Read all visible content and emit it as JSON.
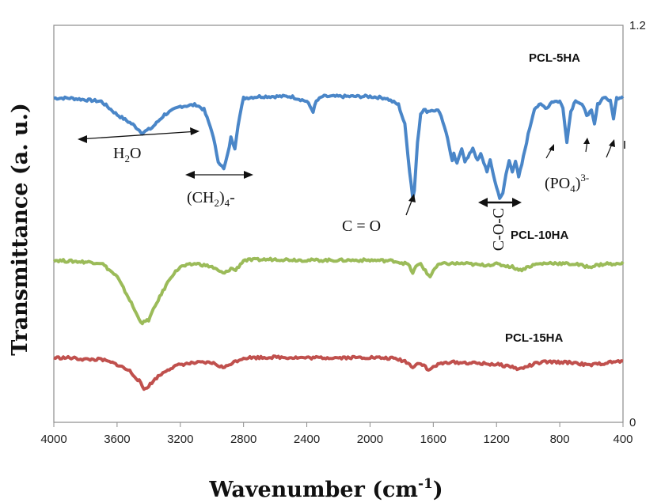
{
  "chart_data": {
    "type": "line",
    "xlabel": "Wavenumber (cm",
    "xlabel_sup": "-1",
    "xlabel_end": ")",
    "ylabel": "Transmittance (a. u.)",
    "xlim": [
      4000,
      400
    ],
    "x_reversed": true,
    "ylim": [
      0,
      1.2
    ],
    "x_ticks": [
      "4000",
      "3600",
      "3200",
      "2800",
      "2400",
      "2000",
      "1600",
      "1200",
      "800",
      "400"
    ],
    "y_ticks": [
      "1.2",
      "0"
    ],
    "grid": false,
    "series": [
      {
        "name": "PCL-5HA",
        "color": "#4a86c8",
        "points": [
          [
            4000,
            0.98
          ],
          [
            3900,
            0.98
          ],
          [
            3800,
            0.975
          ],
          [
            3700,
            0.97
          ],
          [
            3600,
            0.93
          ],
          [
            3500,
            0.9
          ],
          [
            3440,
            0.875
          ],
          [
            3380,
            0.89
          ],
          [
            3300,
            0.93
          ],
          [
            3200,
            0.955
          ],
          [
            3100,
            0.96
          ],
          [
            3050,
            0.945
          ],
          [
            3000,
            0.88
          ],
          [
            2960,
            0.79
          ],
          [
            2925,
            0.765
          ],
          [
            2900,
            0.81
          ],
          [
            2880,
            0.86
          ],
          [
            2855,
            0.83
          ],
          [
            2835,
            0.9
          ],
          [
            2800,
            0.98
          ],
          [
            2700,
            0.985
          ],
          [
            2500,
            0.985
          ],
          [
            2400,
            0.97
          ],
          [
            2360,
            0.94
          ],
          [
            2340,
            0.97
          ],
          [
            2300,
            0.985
          ],
          [
            2000,
            0.985
          ],
          [
            1900,
            0.98
          ],
          [
            1820,
            0.96
          ],
          [
            1780,
            0.9
          ],
          [
            1750,
            0.76
          ],
          [
            1730,
            0.68
          ],
          [
            1720,
            0.7
          ],
          [
            1700,
            0.85
          ],
          [
            1680,
            0.93
          ],
          [
            1660,
            0.945
          ],
          [
            1640,
            0.94
          ],
          [
            1600,
            0.945
          ],
          [
            1560,
            0.94
          ],
          [
            1520,
            0.88
          ],
          [
            1480,
            0.79
          ],
          [
            1470,
            0.81
          ],
          [
            1450,
            0.78
          ],
          [
            1420,
            0.83
          ],
          [
            1400,
            0.79
          ],
          [
            1380,
            0.8
          ],
          [
            1350,
            0.83
          ],
          [
            1320,
            0.79
          ],
          [
            1300,
            0.81
          ],
          [
            1260,
            0.76
          ],
          [
            1240,
            0.79
          ],
          [
            1200,
            0.71
          ],
          [
            1180,
            0.68
          ],
          [
            1160,
            0.69
          ],
          [
            1140,
            0.75
          ],
          [
            1120,
            0.79
          ],
          [
            1100,
            0.76
          ],
          [
            1080,
            0.79
          ],
          [
            1060,
            0.74
          ],
          [
            1040,
            0.78
          ],
          [
            1000,
            0.87
          ],
          [
            960,
            0.95
          ],
          [
            920,
            0.96
          ],
          [
            880,
            0.95
          ],
          [
            850,
            0.97
          ],
          [
            800,
            0.97
          ],
          [
            780,
            0.95
          ],
          [
            755,
            0.85
          ],
          [
            730,
            0.94
          ],
          [
            700,
            0.975
          ],
          [
            660,
            0.96
          ],
          [
            630,
            0.93
          ],
          [
            600,
            0.94
          ],
          [
            580,
            0.9
          ],
          [
            560,
            0.96
          ],
          [
            520,
            0.985
          ],
          [
            480,
            0.97
          ],
          [
            460,
            0.92
          ],
          [
            440,
            0.98
          ],
          [
            400,
            0.985
          ]
        ]
      },
      {
        "name": "PCL-10HA",
        "color": "#9bbb59",
        "points": [
          [
            4000,
            0.49
          ],
          [
            3900,
            0.487
          ],
          [
            3800,
            0.485
          ],
          [
            3700,
            0.482
          ],
          [
            3600,
            0.44
          ],
          [
            3520,
            0.37
          ],
          [
            3470,
            0.32
          ],
          [
            3440,
            0.3
          ],
          [
            3400,
            0.31
          ],
          [
            3340,
            0.37
          ],
          [
            3260,
            0.44
          ],
          [
            3200,
            0.47
          ],
          [
            3100,
            0.48
          ],
          [
            3000,
            0.47
          ],
          [
            2950,
            0.455
          ],
          [
            2920,
            0.45
          ],
          [
            2880,
            0.465
          ],
          [
            2850,
            0.46
          ],
          [
            2800,
            0.49
          ],
          [
            2600,
            0.493
          ],
          [
            2400,
            0.49
          ],
          [
            2000,
            0.49
          ],
          [
            1850,
            0.488
          ],
          [
            1760,
            0.478
          ],
          [
            1730,
            0.452
          ],
          [
            1710,
            0.47
          ],
          [
            1680,
            0.48
          ],
          [
            1640,
            0.45
          ],
          [
            1620,
            0.44
          ],
          [
            1600,
            0.46
          ],
          [
            1560,
            0.478
          ],
          [
            1500,
            0.48
          ],
          [
            1400,
            0.48
          ],
          [
            1300,
            0.475
          ],
          [
            1200,
            0.478
          ],
          [
            1100,
            0.47
          ],
          [
            1050,
            0.46
          ],
          [
            1000,
            0.47
          ],
          [
            950,
            0.478
          ],
          [
            900,
            0.48
          ],
          [
            850,
            0.482
          ],
          [
            800,
            0.48
          ],
          [
            700,
            0.478
          ],
          [
            620,
            0.47
          ],
          [
            560,
            0.475
          ],
          [
            500,
            0.48
          ],
          [
            450,
            0.476
          ],
          [
            400,
            0.485
          ]
        ]
      },
      {
        "name": "PCL-15HA",
        "color": "#c0504d",
        "points": [
          [
            4000,
            0.195
          ],
          [
            3900,
            0.195
          ],
          [
            3800,
            0.19
          ],
          [
            3700,
            0.19
          ],
          [
            3600,
            0.175
          ],
          [
            3520,
            0.155
          ],
          [
            3460,
            0.125
          ],
          [
            3430,
            0.1
          ],
          [
            3400,
            0.11
          ],
          [
            3350,
            0.135
          ],
          [
            3280,
            0.16
          ],
          [
            3200,
            0.175
          ],
          [
            3100,
            0.18
          ],
          [
            3000,
            0.18
          ],
          [
            2950,
            0.17
          ],
          [
            2920,
            0.165
          ],
          [
            2880,
            0.178
          ],
          [
            2800,
            0.195
          ],
          [
            2600,
            0.197
          ],
          [
            2400,
            0.195
          ],
          [
            2000,
            0.196
          ],
          [
            1850,
            0.193
          ],
          [
            1780,
            0.185
          ],
          [
            1730,
            0.168
          ],
          [
            1700,
            0.178
          ],
          [
            1660,
            0.175
          ],
          [
            1630,
            0.155
          ],
          [
            1600,
            0.168
          ],
          [
            1560,
            0.176
          ],
          [
            1500,
            0.182
          ],
          [
            1400,
            0.18
          ],
          [
            1300,
            0.178
          ],
          [
            1200,
            0.175
          ],
          [
            1100,
            0.168
          ],
          [
            1060,
            0.16
          ],
          [
            1000,
            0.17
          ],
          [
            950,
            0.178
          ],
          [
            900,
            0.182
          ],
          [
            800,
            0.182
          ],
          [
            700,
            0.18
          ],
          [
            620,
            0.172
          ],
          [
            560,
            0.176
          ],
          [
            500,
            0.18
          ],
          [
            450,
            0.183
          ],
          [
            400,
            0.185
          ]
        ]
      }
    ],
    "annotations": {
      "h2o": "H",
      "h2o_sub": "2",
      "h2o_end": "O",
      "ch2": "(CH",
      "ch2_sub": "2",
      "ch2_mid": ")",
      "ch2_sub2": "4",
      "ch2_end": "-",
      "co": "C = O",
      "coc": "C-O-C",
      "po4": "(PO",
      "po4_sub": "4",
      "po4_mid": ")",
      "po4_sup": "3-"
    }
  }
}
